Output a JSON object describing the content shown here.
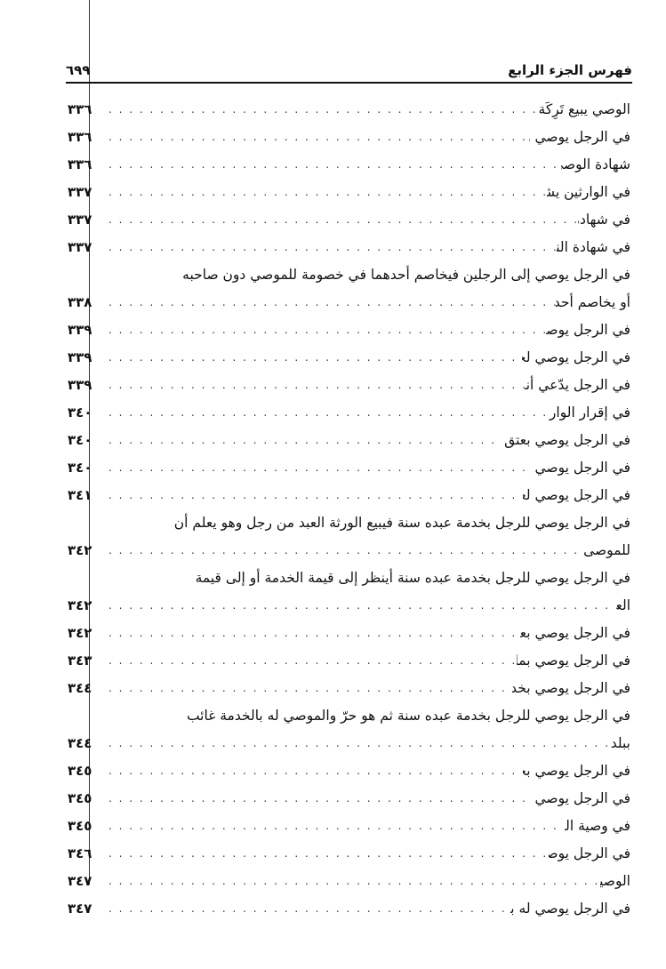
{
  "header": {
    "title": "فهرس الجزء الرابع",
    "page_number": "٦٩٩"
  },
  "entries": [
    {
      "lines": [
        "الوصي يبيع تَرِكَة الموصي وفي الورثة كبار وصغار"
      ],
      "page": "٣٣٦"
    },
    {
      "lines": [
        "في الرجل يوصي ويقول قد أوصيت إلى فلان فصدّقوه"
      ],
      "page": "٣٣٦"
    },
    {
      "lines": [
        "شهادة الوصي لرجل أنه وصيّ معه"
      ],
      "page": "٣٣٦"
    },
    {
      "lines": [
        "في الوارثين يشهدان لرجل أنه وصي أبيهما"
      ],
      "page": "٣٣٧"
    },
    {
      "lines": [
        "في شهادة الوصي للورثة"
      ],
      "page": "٣٣٧"
    },
    {
      "lines": [
        "في شهادة النساء للوصي في الوصية"
      ],
      "page": "٣٣٧"
    },
    {
      "lines": [
        "في الرجل يوصي إلى الرجلين فيخاصم أحدهما في خصومة للموصي دون صاحبه",
        "أو يخاصم أحدهما في دين على الميت"
      ],
      "page": "٣٣٨"
    },
    {
      "lines": [
        "في الرجل يوصي لأم ولده على أن لا تتزوّج"
      ],
      "page": "٣٣٩"
    },
    {
      "lines": [
        "في الرجل يوصي لجنين امرأة فأسقطته بعد موت الموصي"
      ],
      "page": "٣٣٩"
    },
    {
      "lines": [
        "في الرجل يدّعي أنه قد أنفق مال اليتيم عليه أو دفعه إليه"
      ],
      "page": "٣٣٩"
    },
    {
      "lines": [
        "في إقرار الوارث الأجنبي بوصيّة أو بوديعة"
      ],
      "page": "٣٤٠"
    },
    {
      "lines": [
        "في الرجل يوصي بعتق أمته إلى أجل فتلد قبل مضي الأجل أو تجني جناية"
      ],
      "page": "٣٤٠"
    },
    {
      "lines": [
        "في الرجل يوصي بعتق أمته إلى أجل فيعتقها الوارث"
      ],
      "page": "٣٤٠"
    },
    {
      "lines": [
        "في الرجل يوصي لعبده بثلث ماله والثلث يحمل رقبة العبد"
      ],
      "page": "٣٤١"
    },
    {
      "lines": [
        "في الرجل يوصي للرجل بخدمة عبده سنة فيبيع الورثة العبد من رجل وهو يعلم أن",
        "للموصى له فيه الخدمة"
      ],
      "page": "٣٤٢"
    },
    {
      "lines": [
        "في الرجل يوصي للرجل بخدمة عبده سنة أينظر إلى قيمة الخدمة أو إلى قيمة",
        "العبد؟"
      ],
      "page": "٣٤٢"
    },
    {
      "lines": [
        "في الرجل يوصي بعتق الأمة فتلد قبل موت الموصي أو بعده"
      ],
      "page": "٣٤٢"
    },
    {
      "lines": [
        "في الرجل يوصي بما في بطن أمته لرجل فيعتق الورثة الجارية"
      ],
      "page": "٣٤٣"
    },
    {
      "lines": [
        "في الرجل يوصي بخدمة عبده لرجل سنة ثم هو حرّ فيأبى أن يقبل"
      ],
      "page": "٣٤٤"
    },
    {
      "lines": [
        "في الرجل يوصي للرجل بخدمة عبده سنة ثم هو حرّ والموصي له بالخدمة غائب",
        "ببلد نائية"
      ],
      "page": "٣٤٤"
    },
    {
      "lines": [
        "في الرجل يوصي بخدمة أمته لرجل وبرقبتها لآخر فتلد ولداً"
      ],
      "page": "٣٤٥"
    },
    {
      "lines": [
        "في الرجل يوصي لوارثه بخدمة عبده سنة ثم هو حرّ"
      ],
      "page": "٣٤٥"
    },
    {
      "lines": [
        "في وصية المحجور عليه والصبي"
      ],
      "page": "٣٤٥"
    },
    {
      "lines": [
        "في الرجل يوصي لعبد وارثه أو لعبد نفسه"
      ],
      "page": "٣٤٦"
    },
    {
      "lines": [
        "الوصية للقاتل"
      ],
      "page": "٣٤٧"
    },
    {
      "lines": [
        "في الرجل يوصي له بالوصية فيموت الموصى له بعد موت الموصي"
      ],
      "page": "٣٤٧"
    }
  ]
}
